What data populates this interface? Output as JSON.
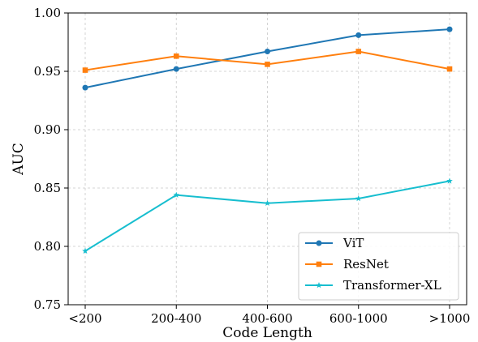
{
  "chart_data": {
    "type": "line",
    "title": "",
    "xlabel": "Code Length",
    "ylabel": "AUC",
    "categories": [
      "<200",
      "200-400",
      "400-600",
      "600-1000",
      ">1000"
    ],
    "ylim": [
      0.75,
      1.0
    ],
    "yticks": [
      "0.75",
      "0.80",
      "0.85",
      "0.90",
      "0.95",
      "1.00"
    ],
    "grid": true,
    "legend_position": "lower-right",
    "series": [
      {
        "name": "ViT",
        "color": "#1f77b4",
        "marker": "circle",
        "values": [
          0.936,
          0.952,
          0.967,
          0.981,
          0.986
        ]
      },
      {
        "name": "ResNet",
        "color": "#ff7f0e",
        "marker": "square",
        "values": [
          0.951,
          0.963,
          0.956,
          0.967,
          0.952
        ]
      },
      {
        "name": "Transformer-XL",
        "color": "#17becf",
        "marker": "star",
        "values": [
          0.796,
          0.844,
          0.837,
          0.841,
          0.856
        ]
      }
    ]
  }
}
